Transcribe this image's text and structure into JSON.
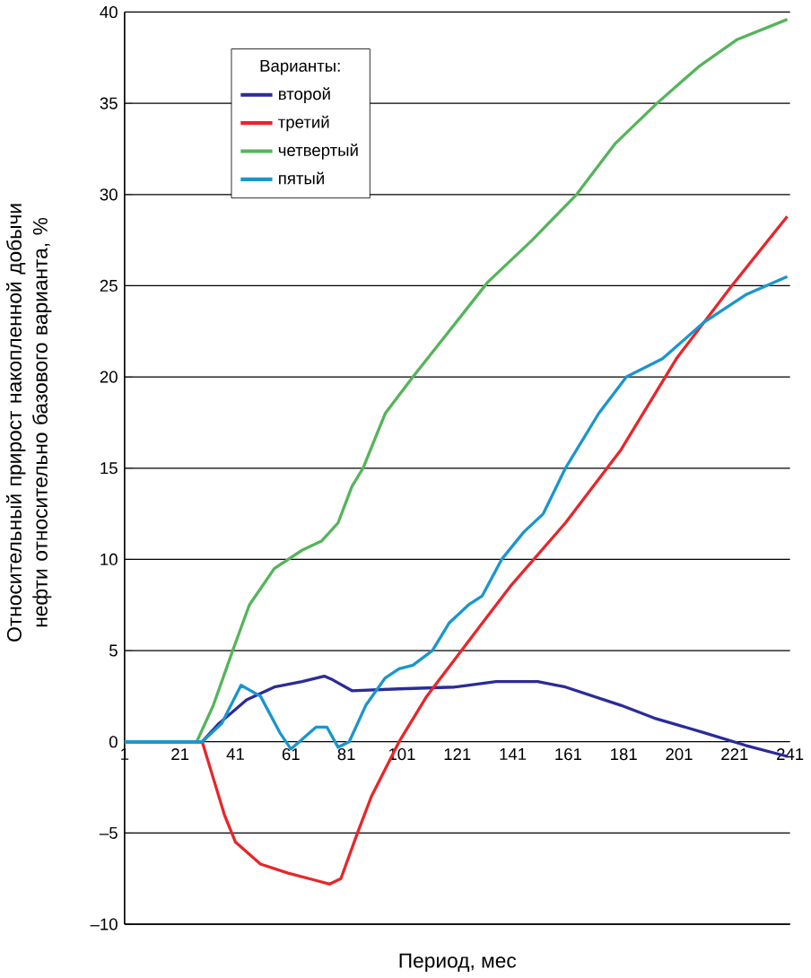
{
  "chart_data": {
    "type": "line",
    "xlabel": "Период, мес",
    "ylabel": "Относительный прирост накопленной добычи нефти относительно базового варианта, %",
    "legend_title": "Варианты:",
    "legend": "top left",
    "grid": "y",
    "marker": "none",
    "line_style": "solid",
    "xlim": [
      1,
      241
    ],
    "xticks": [
      1,
      21,
      41,
      61,
      81,
      101,
      121,
      141,
      161,
      181,
      201,
      221,
      241
    ],
    "ylim": [
      -10,
      40
    ],
    "yticks": [
      {
        "value": -10,
        "label": "–10"
      },
      {
        "value": -5,
        "label": "–5"
      },
      0,
      5,
      10,
      15,
      20,
      25,
      30,
      35,
      40
    ],
    "series": [
      {
        "name": "второй",
        "color": "#2b2b9a",
        "x": [
          1,
          29,
          35,
          45,
          55,
          65,
          73,
          76,
          83,
          100,
          120,
          135,
          150,
          160,
          170,
          180,
          192,
          210,
          225,
          240
        ],
        "values": [
          0,
          0,
          1,
          2.3,
          3,
          3.3,
          3.6,
          3.4,
          2.8,
          2.9,
          3,
          3.3,
          3.3,
          3,
          2.5,
          2,
          1.3,
          0.5,
          -0.2,
          -0.8
        ]
      },
      {
        "name": "третий",
        "color": "#e8262a",
        "x": [
          1,
          29,
          33,
          37,
          41,
          50,
          60,
          70,
          75,
          79,
          85,
          90,
          100,
          110,
          120,
          130,
          140,
          160,
          180,
          200,
          220,
          240
        ],
        "values": [
          0,
          0,
          -2,
          -4,
          -5.5,
          -6.7,
          -7.2,
          -7.6,
          -7.8,
          -7.5,
          -5,
          -3,
          0,
          2.5,
          4.5,
          6.5,
          8.5,
          12,
          16,
          21,
          25,
          28.8
        ]
      },
      {
        "name": "четвертый",
        "color": "#55b45a",
        "x": [
          1,
          27,
          33,
          40,
          46,
          55,
          65,
          72,
          78,
          83,
          87,
          95,
          105,
          118,
          132,
          148,
          164,
          178,
          193,
          208,
          222,
          240
        ],
        "values": [
          0,
          0,
          2,
          5,
          7.5,
          9.5,
          10.5,
          11,
          12,
          14,
          15,
          18,
          20,
          22.5,
          25.2,
          27.5,
          30,
          32.8,
          35,
          37,
          38.5,
          39.6
        ]
      },
      {
        "name": "пятый",
        "color": "#1a96cc",
        "x": [
          1,
          29,
          36,
          43,
          50,
          57,
          61,
          64,
          70,
          74,
          78,
          82,
          88,
          95,
          100,
          105,
          112,
          118,
          125,
          130,
          137,
          145,
          152,
          160,
          172,
          182,
          195,
          210,
          225,
          240
        ],
        "values": [
          0,
          0,
          1,
          3.1,
          2.5,
          0.5,
          -0.4,
          0,
          0.8,
          0.8,
          -0.3,
          0,
          2,
          3.5,
          4,
          4.2,
          5,
          6.5,
          7.5,
          8,
          10,
          11.5,
          12.5,
          15,
          18,
          20,
          21,
          23,
          24.5,
          25.5
        ]
      }
    ]
  }
}
